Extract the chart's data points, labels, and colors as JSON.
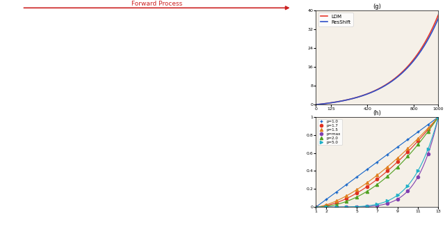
{
  "fig_width": 6.4,
  "fig_height": 3.23,
  "dpi": 100,
  "top_chart": {
    "title": "(g)",
    "ylim": [
      0,
      40
    ],
    "yticks": [
      0,
      8,
      16,
      24,
      32,
      40
    ],
    "xlim": [
      0,
      1000
    ],
    "ldm_color": "#e8382a",
    "resshift_color": "#3050c8",
    "legend_labels": [
      "LDM",
      "ResShift"
    ],
    "bg_color": "#f5f0e8"
  },
  "bottom_chart": {
    "title": "(h)",
    "xlim": [
      1,
      13
    ],
    "ylim": [
      0,
      1
    ],
    "xticks": [
      1,
      2,
      5,
      7,
      9,
      11,
      13
    ],
    "xtick_labels": [
      "1",
      "2",
      "5",
      "7",
      "9",
      "11",
      "13"
    ],
    "yticks": [
      0,
      0.2,
      0.4,
      0.6,
      0.8,
      1.0
    ],
    "ytick_labels": [
      "0",
      "0.2",
      "0.4",
      "0.6",
      "0.8",
      "1"
    ],
    "bg_color": "#f5f0e8",
    "series": [
      {
        "label": "p=1.0",
        "color": "#1464c8",
        "marker": "+",
        "power": 1.0
      },
      {
        "label": "p=1.7",
        "color": "#e03020",
        "marker": "o",
        "power": 1.7
      },
      {
        "label": "p=1.5",
        "color": "#e08020",
        "marker": "^",
        "power": 1.5
      },
      {
        "label": "p=max",
        "color": "#8040b0",
        "marker": "o",
        "power": 6.0
      },
      {
        "label": "p=2.0",
        "color": "#50a020",
        "marker": "^",
        "power": 2.0
      },
      {
        "label": "p=5.0",
        "color": "#20b0c8",
        "marker": ">",
        "power": 5.0
      }
    ]
  }
}
